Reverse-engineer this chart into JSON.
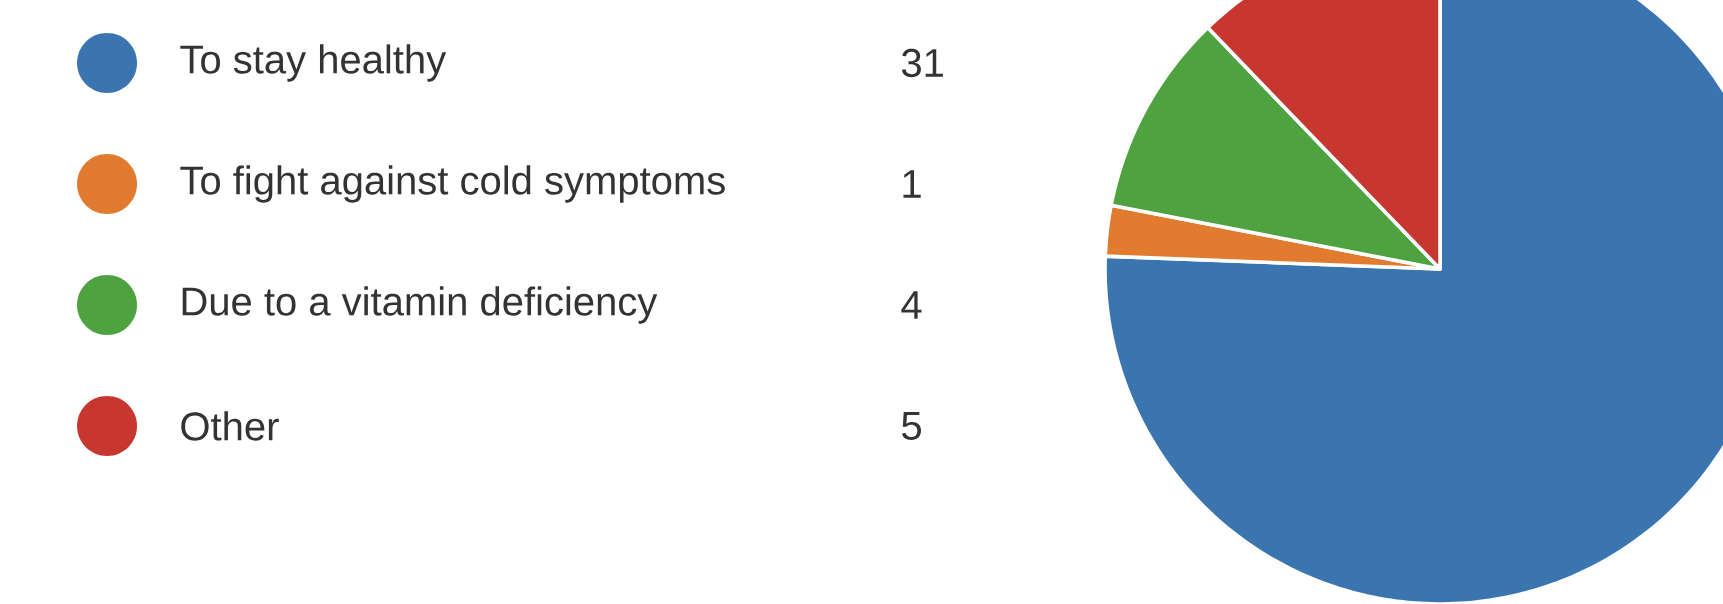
{
  "chart_data": {
    "type": "pie",
    "categories": [
      "To stay healthy",
      "To fight against cold symptoms",
      "Due to a vitamin deficiency",
      "Other"
    ],
    "values": [
      31,
      1,
      4,
      5
    ],
    "colors": [
      "#3a75b0",
      "#e07b30",
      "#4ea23f",
      "#c8372f"
    ],
    "legend": "left",
    "data_labels": true
  }
}
